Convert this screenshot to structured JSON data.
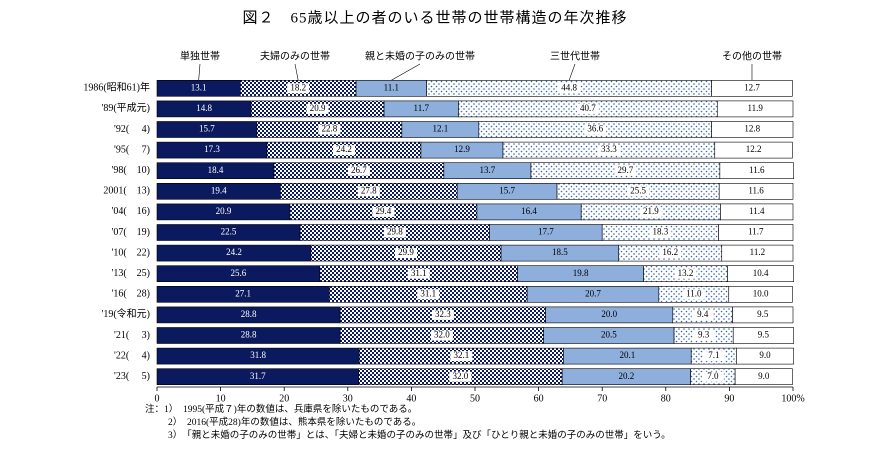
{
  "chart_data": {
    "type": "stacked-bar-horizontal",
    "title": "図２　65歳以上の者のいる世帯の世帯構造の年次推移",
    "categories": [
      "1986(昭和61)年",
      "'89(平成元)",
      "'92(　 4)",
      "'95(　 7)",
      "'98(　10)",
      "2001(　13)",
      "'04(　16)",
      "'07(　19)",
      "'10(　22)",
      "'13(　25)",
      "'16(　28)",
      "'19(令和元)",
      "'21(　 3)",
      "'22(　 4)",
      "'23(　 5)"
    ],
    "series": [
      {
        "name": "単独世帯",
        "color": "#0b1a5e",
        "pattern": "solid",
        "values": [
          13.1,
          14.8,
          15.7,
          17.3,
          18.4,
          19.4,
          20.9,
          22.5,
          24.2,
          25.6,
          27.1,
          28.8,
          28.8,
          31.8,
          31.7
        ],
        "value_labels": [
          "13.1",
          "14.8",
          "15.7",
          "17.3",
          "18.4",
          "19.4",
          "20.9",
          "22.5",
          "24.2",
          "25.6",
          "27.1",
          "28.8",
          "28.8",
          "31.8",
          "31.7"
        ]
      },
      {
        "name": "夫婦のみの世帯",
        "color": "#0b1a5e",
        "pattern": "checker",
        "values": [
          18.2,
          20.9,
          22.8,
          24.2,
          26.7,
          27.8,
          29.4,
          29.8,
          29.9,
          31.1,
          31.1,
          32.3,
          32.0,
          32.1,
          32.0
        ],
        "value_labels": [
          "18.2",
          "20.9",
          "22.8",
          "24.2",
          "26.7",
          "27.8",
          "29.4",
          "29.8",
          "29.9",
          "31.1",
          "31.1",
          "32.3",
          "32.0",
          "32.1",
          "32.0"
        ]
      },
      {
        "name": "親と未婚の子のみの世帯",
        "color": "#8eaedc",
        "pattern": "solid",
        "values": [
          11.1,
          11.7,
          12.1,
          12.9,
          13.7,
          15.7,
          16.4,
          17.7,
          18.5,
          19.8,
          20.7,
          20.0,
          20.5,
          20.1,
          20.2
        ],
        "value_labels": [
          "11.1",
          "11.7",
          "12.1",
          "12.9",
          "13.7",
          "15.7",
          "16.4",
          "17.7",
          "18.5",
          "19.8",
          "20.7",
          "20.0",
          "20.5",
          "20.1",
          "20.2"
        ]
      },
      {
        "name": "三世代世帯",
        "color": "#3a66b0",
        "pattern": "dots",
        "values": [
          44.8,
          40.7,
          36.6,
          33.3,
          29.7,
          25.5,
          21.9,
          18.3,
          16.2,
          13.2,
          11.0,
          9.4,
          9.3,
          7.1,
          7.0
        ],
        "value_labels": [
          "44.8",
          "40.7",
          "36.6",
          "33.3",
          "29.7",
          "25.5",
          "21.9",
          "18.3",
          "16.2",
          "13.2",
          "11.0",
          "9.4",
          "9.3",
          "7.1",
          "7.0"
        ]
      },
      {
        "name": "その他の世帯",
        "color": "#ffffff",
        "pattern": "solid",
        "values": [
          12.7,
          11.9,
          12.8,
          12.2,
          11.6,
          11.6,
          11.4,
          11.7,
          11.2,
          10.4,
          10.0,
          9.5,
          9.5,
          9.0,
          9.0
        ],
        "value_labels": [
          "12.7",
          "11.9",
          "12.8",
          "12.2",
          "11.6",
          "11.6",
          "11.4",
          "11.7",
          "11.2",
          "10.4",
          "10.0",
          "9.5",
          "9.5",
          "9.0",
          "9.0"
        ]
      }
    ],
    "xlim": [
      0,
      100
    ],
    "xticks": [
      0,
      10,
      20,
      30,
      40,
      50,
      60,
      70,
      80,
      90,
      {
        "value": 100,
        "label": "100%"
      }
    ],
    "notes": [
      "注：1）　1995(平成７)年の数値は、兵庫県を除いたものである。",
      "2）　2016(平成28)年の数値は、熊本県を除いたものである。",
      "3）　「親と未婚の子のみの世帯」とは、「夫婦と未婚の子のみの世帯」及び「ひとり親と未婚の子のみの世帯」をいう。"
    ]
  }
}
